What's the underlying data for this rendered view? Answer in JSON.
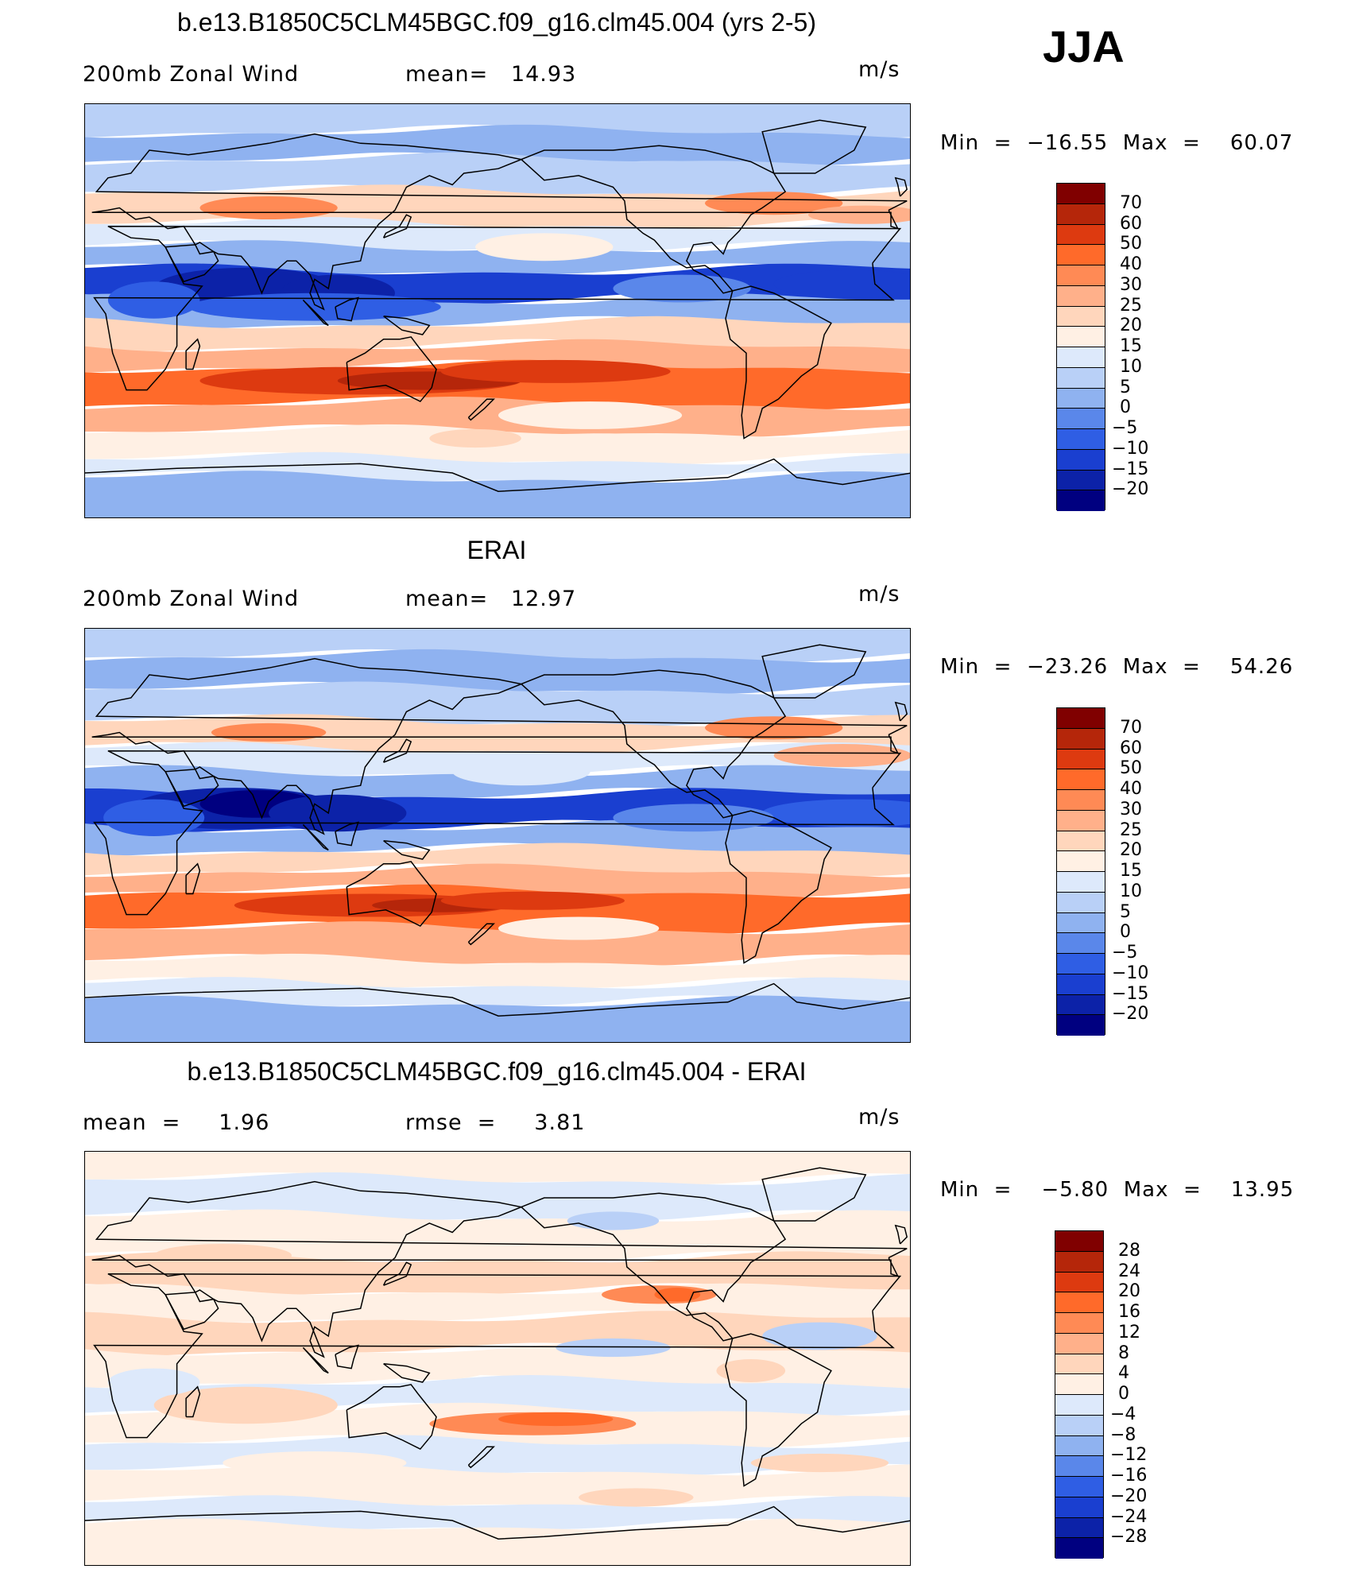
{
  "season": "JJA",
  "units": "m/s",
  "panels": [
    {
      "title": "b.e13.B1850C5CLM45BGC.f09_g16.clm45.004 (yrs 2-5)",
      "left_label": "200mb Zonal Wind",
      "mid_label": "mean=   14.93",
      "units": "m/s",
      "minmax": "Min  =  −16.55  Max  =    60.07",
      "colorbar": {
        "colors": [
          "#800000",
          "#b5260a",
          "#dd3a10",
          "#ff6a2a",
          "#ff8a55",
          "#ffb08a",
          "#ffd6bc",
          "#fff0e4",
          "#dde9fb",
          "#b9d0f7",
          "#8fb2f0",
          "#5a87ea",
          "#2f5ee4",
          "#1a3fd0",
          "#0c22a8",
          "#000080"
        ],
        "labels": [
          "70",
          "60",
          "50",
          "40",
          "30",
          "25",
          "20",
          "15",
          "10",
          "5",
          "0",
          "−5",
          "−10",
          "−15",
          "−20"
        ]
      },
      "field": "model"
    },
    {
      "title": "ERAI",
      "left_label": "200mb Zonal Wind",
      "mid_label": "mean=   12.97",
      "units": "m/s",
      "minmax": "Min  =  −23.26  Max  =    54.26",
      "colorbar": {
        "colors": [
          "#800000",
          "#b5260a",
          "#dd3a10",
          "#ff6a2a",
          "#ff8a55",
          "#ffb08a",
          "#ffd6bc",
          "#fff0e4",
          "#dde9fb",
          "#b9d0f7",
          "#8fb2f0",
          "#5a87ea",
          "#2f5ee4",
          "#1a3fd0",
          "#0c22a8",
          "#000080"
        ],
        "labels": [
          "70",
          "60",
          "50",
          "40",
          "30",
          "25",
          "20",
          "15",
          "10",
          "5",
          "0",
          "−5",
          "−10",
          "−15",
          "−20"
        ]
      },
      "field": "obs"
    },
    {
      "title": "b.e13.B1850C5CLM45BGC.f09_g16.clm45.004 - ERAI",
      "left_label": "mean  =     1.96",
      "mid_label": "rmse  =     3.81",
      "units": "m/s",
      "minmax": "Min  =    −5.80  Max  =    13.95",
      "colorbar": {
        "colors": [
          "#800000",
          "#b5260a",
          "#dd3a10",
          "#ff6a2a",
          "#ff8a55",
          "#ffb08a",
          "#ffd6bc",
          "#fff0e4",
          "#dde9fb",
          "#b9d0f7",
          "#8fb2f0",
          "#5a87ea",
          "#2f5ee4",
          "#1a3fd0",
          "#0c22a8",
          "#000080"
        ],
        "labels": [
          "28",
          "24",
          "20",
          "16",
          "12",
          "8",
          "4",
          "0",
          "−4",
          "−8",
          "−12",
          "−16",
          "−20",
          "−24",
          "−28"
        ]
      },
      "field": "diff"
    }
  ]
}
